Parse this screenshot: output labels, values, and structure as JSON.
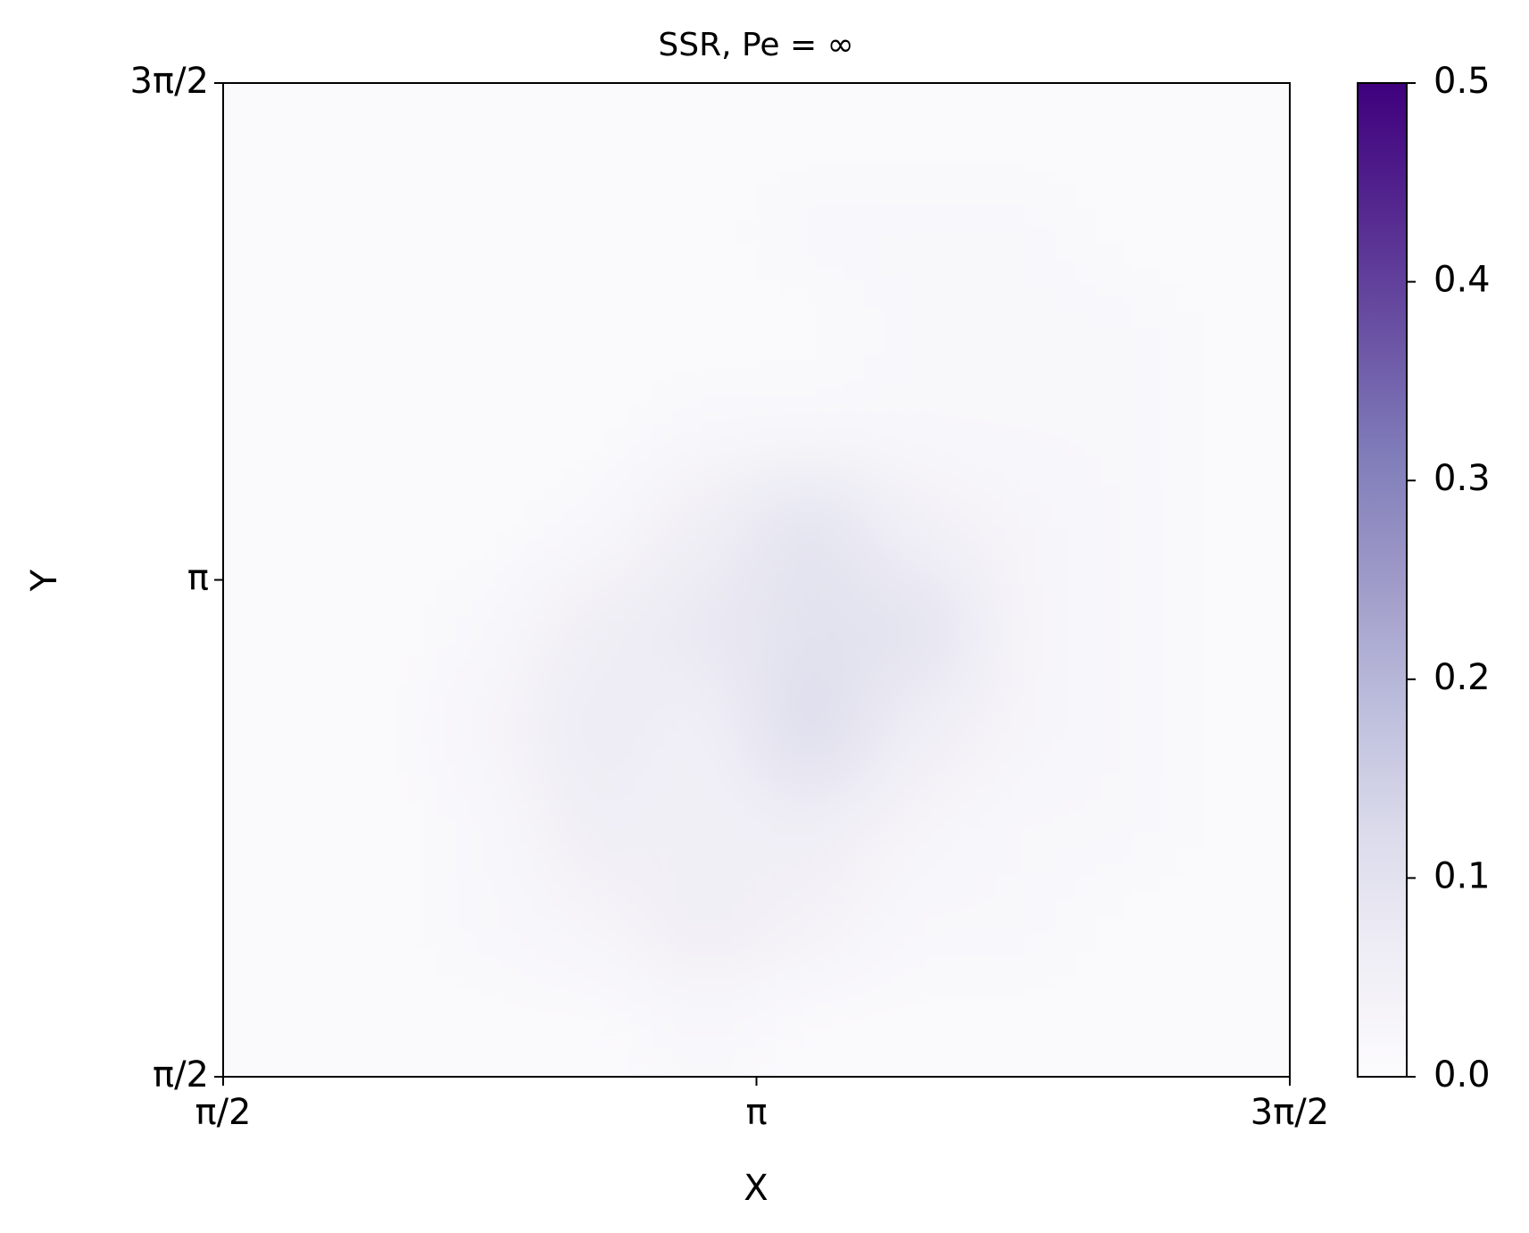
{
  "chart_data": {
    "type": "heatmap",
    "title": "SSR, Pe = ∞",
    "x_label": "X",
    "y_label": "Y",
    "xlim": [
      1.5708,
      4.7124
    ],
    "ylim": [
      1.5708,
      4.7124
    ],
    "xticks": [
      {
        "value": 1.5708,
        "label": "π/2"
      },
      {
        "value": 3.1416,
        "label": "π"
      },
      {
        "value": 4.7124,
        "label": "3π/2"
      }
    ],
    "yticks": [
      {
        "value": 1.5708,
        "label": "π/2"
      },
      {
        "value": 3.1416,
        "label": "π"
      },
      {
        "value": 4.7124,
        "label": "3π/2"
      }
    ],
    "zlim": [
      0,
      0.5
    ],
    "zticks": [
      {
        "value": 0,
        "label": "0.0"
      },
      {
        "value": 0.1,
        "label": "0.1"
      },
      {
        "value": 0.2,
        "label": "0.2"
      },
      {
        "value": 0.3,
        "label": "0.3"
      },
      {
        "value": 0.4,
        "label": "0.4"
      },
      {
        "value": 0.5,
        "label": "0.5"
      }
    ],
    "colors": [
      "#fcfbfd",
      "#efedf5",
      "#dadaeb",
      "#bcbddc",
      "#9e9ac8",
      "#807dba",
      "#6a51a3",
      "#54278f",
      "#3f007d"
    ],
    "z": [
      [
        0.01,
        0.01,
        0.01,
        0.01,
        0.01,
        0.01,
        0.01,
        0.01,
        0.01,
        0.01
      ],
      [
        0.01,
        0.01,
        0.01,
        0.01,
        0.01,
        0.02,
        0.02,
        0.02,
        0.01,
        0.01
      ],
      [
        0.01,
        0.01,
        0.01,
        0.01,
        0.01,
        0.01,
        0.02,
        0.02,
        0.02,
        0.01
      ],
      [
        0.01,
        0.01,
        0.01,
        0.01,
        0.02,
        0.02,
        0.02,
        0.02,
        0.02,
        0.01
      ],
      [
        0.01,
        0.01,
        0.01,
        0.02,
        0.06,
        0.1,
        0.05,
        0.03,
        0.02,
        0.01
      ],
      [
        0.01,
        0.01,
        0.02,
        0.06,
        0.08,
        0.1,
        0.1,
        0.03,
        0.02,
        0.01
      ],
      [
        0.01,
        0.01,
        0.03,
        0.07,
        0.05,
        0.12,
        0.06,
        0.03,
        0.02,
        0.01
      ],
      [
        0.01,
        0.01,
        0.02,
        0.06,
        0.05,
        0.06,
        0.03,
        0.02,
        0.02,
        0.01
      ],
      [
        0.01,
        0.01,
        0.02,
        0.03,
        0.06,
        0.04,
        0.02,
        0.02,
        0.01,
        0.01
      ],
      [
        0.01,
        0.01,
        0.01,
        0.01,
        0.02,
        0.01,
        0.01,
        0.01,
        0.01,
        0.01
      ]
    ]
  }
}
